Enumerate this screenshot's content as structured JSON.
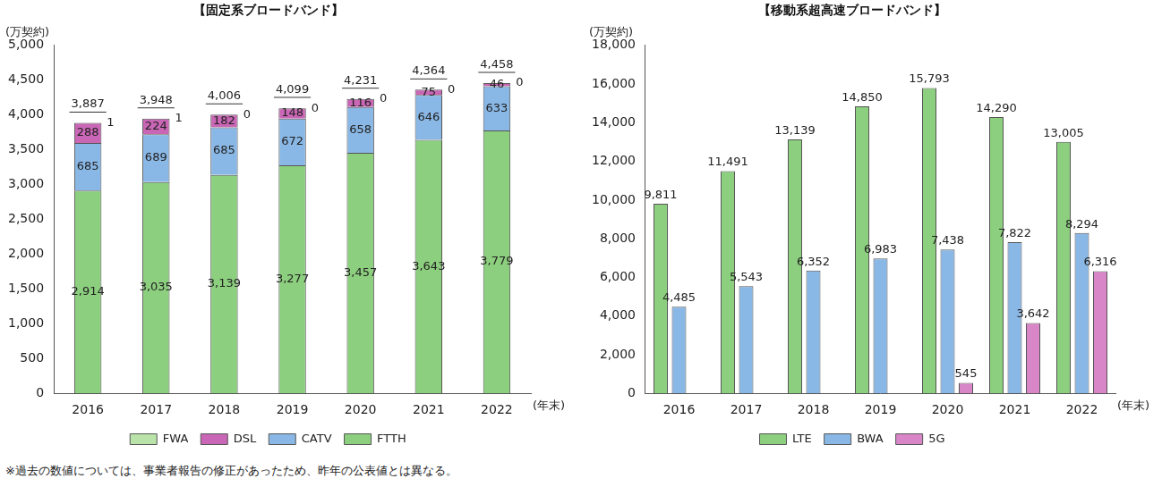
{
  "chart_data": [
    {
      "type": "bar",
      "title": "【固定系ブロードバンド】",
      "y_label": "(万契約)",
      "x_label": "(年末)",
      "categories": [
        "2016",
        "2017",
        "2018",
        "2019",
        "2020",
        "2021",
        "2022"
      ],
      "series": [
        {
          "name": "FTTH",
          "color": "#8ccf7e",
          "values": [
            2914,
            3035,
            3139,
            3277,
            3457,
            3643,
            3779
          ],
          "value_labels": [
            "2,914",
            "3,035",
            "3,139",
            "3,277",
            "3,457",
            "3,643",
            "3,779"
          ]
        },
        {
          "name": "CATV",
          "color": "#8ab8e6",
          "values": [
            685,
            689,
            685,
            672,
            658,
            646,
            633
          ]
        },
        {
          "name": "DSL",
          "color": "#c966b5",
          "values": [
            288,
            224,
            182,
            148,
            116,
            75,
            46
          ]
        },
        {
          "name": "FWA",
          "color": "#b9e3a8",
          "values": [
            1,
            1,
            0,
            0,
            0,
            0,
            0
          ]
        }
      ],
      "totals": {
        "values": [
          3887,
          3948,
          4006,
          4099,
          4231,
          4364,
          4458
        ],
        "value_labels": [
          "3,887",
          "3,948",
          "4,006",
          "4,099",
          "4,231",
          "4,364",
          "4,458"
        ]
      },
      "stacked": true,
      "data_labels": true,
      "grid": false,
      "legend": "bottom",
      "ylim": [
        0,
        5000
      ],
      "yticks": [
        0,
        500,
        {
          "value": 1000,
          "label": "1,000"
        },
        {
          "value": 1500,
          "label": "1,500"
        },
        {
          "value": 2000,
          "label": "2,000"
        },
        {
          "value": 2500,
          "label": "2,500"
        },
        {
          "value": 3000,
          "label": "3,000"
        },
        {
          "value": 3500,
          "label": "3,500"
        },
        {
          "value": 4000,
          "label": "4,000"
        },
        {
          "value": 4500,
          "label": "4,500"
        },
        {
          "value": 5000,
          "label": "5,000"
        }
      ]
    },
    {
      "type": "bar",
      "title": "【移動系超高速ブロードバンド】",
      "y_label": "(万契約)",
      "x_label": "(年末)",
      "categories": [
        "2016",
        "2017",
        "2018",
        "2019",
        "2020",
        "2021",
        "2022"
      ],
      "series": [
        {
          "name": "LTE",
          "color": "#8ccf7e",
          "values": [
            9811,
            11491,
            13139,
            14850,
            15793,
            14290,
            13005
          ],
          "value_labels": [
            "9,811",
            "11,491",
            "13,139",
            "14,850",
            "15,793",
            "14,290",
            "13,005"
          ]
        },
        {
          "name": "BWA",
          "color": "#8ab8e6",
          "values": [
            4485,
            5543,
            6352,
            6983,
            7438,
            7822,
            8294
          ],
          "value_labels": [
            "4,485",
            "5,543",
            "6,352",
            "6,983",
            "7,438",
            "7,822",
            "8,294"
          ]
        },
        {
          "name": "5G",
          "color": "#d986c8",
          "values": [
            null,
            null,
            null,
            null,
            545,
            3642,
            6316
          ],
          "value_labels": [
            null,
            null,
            null,
            null,
            "545",
            "3,642",
            "6,316"
          ]
        }
      ],
      "stacked": false,
      "data_labels": true,
      "grid": false,
      "legend": "bottom",
      "ylim": [
        0,
        18000
      ],
      "yticks": [
        0,
        {
          "value": 2000,
          "label": "2,000"
        },
        {
          "value": 4000,
          "label": "4,000"
        },
        {
          "value": 6000,
          "label": "6,000"
        },
        {
          "value": 8000,
          "label": "8,000"
        },
        {
          "value": 10000,
          "label": "10,000"
        },
        {
          "value": 12000,
          "label": "12,000"
        },
        {
          "value": 14000,
          "label": "14,000"
        },
        {
          "value": 16000,
          "label": "16,000"
        },
        {
          "value": 18000,
          "label": "18,000"
        }
      ]
    }
  ],
  "note": "※過去の数値については、事業者報告の修正があったため、昨年の公表値とは異なる。"
}
